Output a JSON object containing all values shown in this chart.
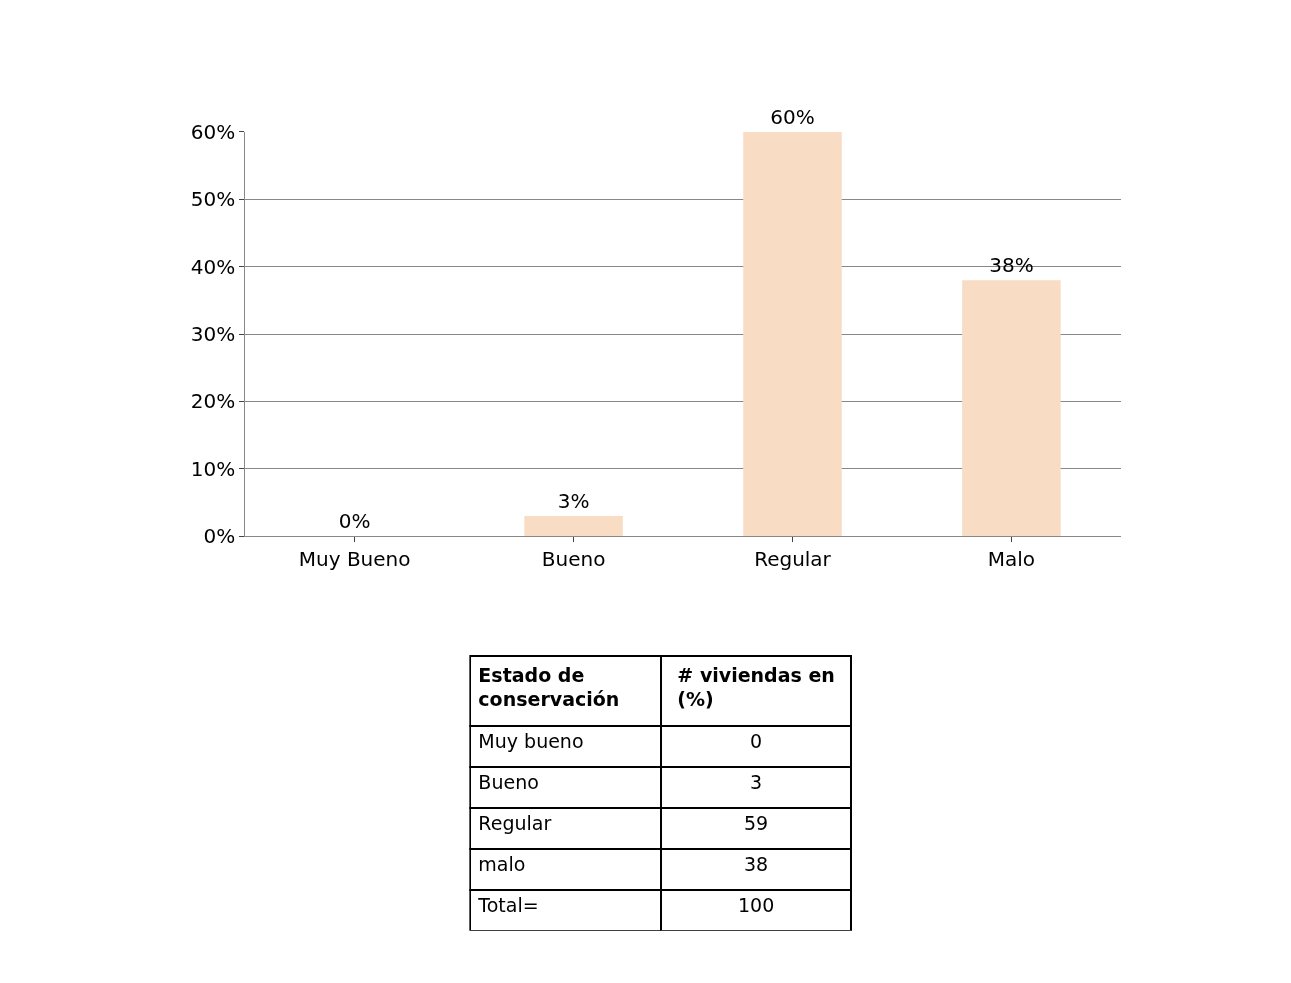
{
  "chart_data": {
    "type": "bar",
    "categories": [
      "Muy Bueno",
      "Bueno",
      "Regular",
      "Malo"
    ],
    "values": [
      0,
      3,
      60,
      38
    ],
    "value_labels": [
      "0%",
      "3%",
      "60%",
      "38%"
    ],
    "color": "#f9dcc4",
    "ylim": [
      0,
      60
    ],
    "yticks": [
      {
        "value": 0,
        "label": "0%"
      },
      {
        "value": 10,
        "label": "10%"
      },
      {
        "value": 20,
        "label": "20%"
      },
      {
        "value": 30,
        "label": "30%"
      },
      {
        "value": 40,
        "label": "40%"
      },
      {
        "value": 50,
        "label": "50%"
      },
      {
        "value": 60,
        "label": "60%"
      }
    ],
    "grid": "y",
    "annotations": [
      "Estado de conservación",
      "# viviendas en (%)",
      "Muy bueno",
      "0",
      "Bueno",
      "3",
      "Regular",
      "59",
      "malo",
      "38",
      "Total=",
      "100"
    ]
  }
}
